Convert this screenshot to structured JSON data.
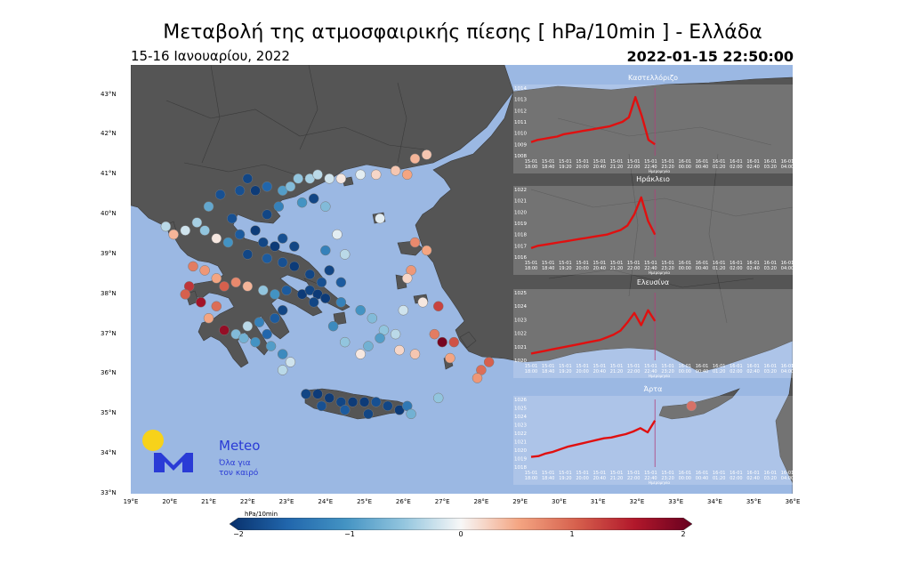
{
  "title": "Μεταβολή της ατμοσφαιρικής πίεσης [ hPa/10min ] - Ελλάδα",
  "subtitle": "15-16 Ιανουαρίου, 2022",
  "timestamp": "2022-01-15 22:50:00",
  "lat_labels": [
    "43°N",
    "42°N",
    "41°N",
    "40°N",
    "39°N",
    "38°N",
    "37°N",
    "36°N",
    "35°N",
    "34°N",
    "33°N"
  ],
  "lon_labels": [
    "19°E",
    "20°E",
    "21°E",
    "22°E",
    "23°E",
    "24°E",
    "25°E",
    "26°E",
    "27°E",
    "28°E",
    "29°E",
    "30°E",
    "31°E",
    "32°E",
    "33°E",
    "34°E",
    "35°E",
    "36°E"
  ],
  "colorbar": {
    "label": "hPa/10min",
    "ticks": [
      "−2",
      "−1",
      "0",
      "1",
      "2"
    ],
    "colors": [
      "#08306b",
      "#2166ac",
      "#4393c3",
      "#92c5de",
      "#f7f7f7",
      "#f4a582",
      "#d6604d",
      "#b2182b",
      "#67001f"
    ]
  },
  "colors": {
    "sea": "#9bb8e3",
    "land": "#555555",
    "border": "#3a3a3a",
    "series": "#e01010",
    "marker": "#b0407a"
  },
  "logo": {
    "name": "Meteo",
    "tagline_1": "Όλα για",
    "tagline_2": "τον καιρό"
  },
  "insets": [
    {
      "name": "Καστελλόριζο",
      "y_ticks": [
        "1014",
        "1013",
        "1012",
        "1011",
        "1010",
        "1009",
        "1008"
      ],
      "y_range": [
        1008,
        1014
      ],
      "x_ticks_date": [
        "15-01",
        "15-01",
        "15-01",
        "15-01",
        "15-01",
        "15-01",
        "15-01",
        "15-01",
        "15-01",
        "16-01",
        "16-01",
        "16-01",
        "16-01",
        "16-01",
        "16-01",
        "16-01"
      ],
      "x_ticks_time": [
        "18:00",
        "18:40",
        "19:20",
        "20:00",
        "20:40",
        "21:20",
        "22:00",
        "22:40",
        "23:20",
        "00:00",
        "00:40",
        "01:20",
        "02:00",
        "02:40",
        "03:20",
        "04:00"
      ],
      "xlabel": "Ημερομηνία",
      "values": [
        1009.2,
        1009.4,
        1009.5,
        1009.6,
        1009.7,
        1009.9,
        1010.0,
        1010.1,
        1010.2,
        1010.3,
        1010.4,
        1010.5,
        1010.6,
        1010.8,
        1011.0,
        1011.4,
        1013.2,
        1011.5,
        1009.4,
        1009.0
      ]
    },
    {
      "name": "Ηράκλειο",
      "y_ticks": [
        "1022",
        "1021",
        "1020",
        "1019",
        "1018",
        "1017",
        "1016"
      ],
      "y_range": [
        1016,
        1022
      ],
      "x_ticks_date": [
        "15-01",
        "15-01",
        "15-01",
        "15-01",
        "15-01",
        "15-01",
        "15-01",
        "15-01",
        "15-01",
        "16-01",
        "16-01",
        "16-01",
        "16-01",
        "16-01",
        "16-01",
        "16-01"
      ],
      "x_ticks_time": [
        "18:00",
        "18:40",
        "19:20",
        "20:00",
        "20:40",
        "21:20",
        "22:00",
        "22:40",
        "23:20",
        "00:00",
        "00:40",
        "01:20",
        "02:00",
        "02:40",
        "03:20",
        "04:00"
      ],
      "xlabel": "Ημερομηνία",
      "values": [
        1016.8,
        1017.0,
        1017.1,
        1017.2,
        1017.3,
        1017.4,
        1017.5,
        1017.6,
        1017.7,
        1017.8,
        1017.9,
        1018.0,
        1018.2,
        1018.4,
        1018.8,
        1019.8,
        1021.3,
        1019.2,
        1018.0
      ]
    },
    {
      "name": "Ελευσίνα",
      "y_ticks": [
        "1025",
        "1024",
        "1023",
        "1022",
        "1021",
        "1020"
      ],
      "y_range": [
        1020,
        1025
      ],
      "x_ticks_date": [
        "15-01",
        "15-01",
        "15-01",
        "15-01",
        "15-01",
        "15-01",
        "15-01",
        "15-01",
        "15-01",
        "16-01",
        "16-01",
        "16-01",
        "16-01",
        "16-01",
        "16-01",
        "16-01"
      ],
      "x_ticks_time": [
        "18:00",
        "18:40",
        "19:20",
        "20:00",
        "20:40",
        "21:20",
        "22:00",
        "22:40",
        "23:20",
        "00:00",
        "00:40",
        "01:20",
        "02:00",
        "02:40",
        "03:20",
        "04:00"
      ],
      "xlabel": "Ημερομηνία",
      "values": [
        1020.5,
        1020.6,
        1020.7,
        1020.8,
        1020.9,
        1021.0,
        1021.1,
        1021.2,
        1021.3,
        1021.4,
        1021.5,
        1021.7,
        1021.9,
        1022.2,
        1022.8,
        1023.5,
        1022.6,
        1023.7,
        1022.9
      ]
    },
    {
      "name": "Άρτα",
      "y_ticks": [
        "1026",
        "1025",
        "1024",
        "1023",
        "1022",
        "1021",
        "1020",
        "1019",
        "1018"
      ],
      "y_range": [
        1018,
        1026
      ],
      "x_ticks_date": [
        "15-01",
        "15-01",
        "15-01",
        "15-01",
        "15-01",
        "15-01",
        "15-01",
        "15-01",
        "15-01",
        "16-01",
        "16-01",
        "16-01",
        "16-01",
        "16-01",
        "16-01",
        "16-01"
      ],
      "x_ticks_time": [
        "18:00",
        "18:40",
        "19:20",
        "20:00",
        "20:40",
        "21:20",
        "22:00",
        "22:40",
        "23:20",
        "00:00",
        "00:40",
        "01:20",
        "02:00",
        "02:40",
        "03:20",
        "04:00"
      ],
      "xlabel": "Ημερομηνία",
      "values": [
        1019.2,
        1019.3,
        1019.6,
        1019.8,
        1020.1,
        1020.4,
        1020.6,
        1020.8,
        1021.0,
        1021.2,
        1021.4,
        1021.5,
        1021.7,
        1021.9,
        1022.2,
        1022.6,
        1022.1,
        1023.5
      ]
    }
  ],
  "stations": [
    [
      22.0,
      40.9,
      -1.8
    ],
    [
      21.8,
      40.6,
      -1.7
    ],
    [
      22.2,
      40.6,
      -1.9
    ],
    [
      22.5,
      40.7,
      -1.5
    ],
    [
      22.9,
      40.6,
      -0.9
    ],
    [
      23.1,
      40.7,
      -0.6
    ],
    [
      23.3,
      40.9,
      -0.5
    ],
    [
      23.6,
      40.9,
      -0.4
    ],
    [
      23.8,
      41.0,
      -0.3
    ],
    [
      24.1,
      40.9,
      -0.2
    ],
    [
      24.4,
      40.9,
      0.1
    ],
    [
      24.9,
      41.0,
      -0.1
    ],
    [
      25.3,
      41.0,
      0.2
    ],
    [
      25.8,
      41.1,
      0.3
    ],
    [
      26.1,
      41.0,
      0.5
    ],
    [
      26.3,
      41.4,
      0.4
    ],
    [
      26.6,
      41.5,
      0.3
    ],
    [
      23.7,
      40.4,
      -1.8
    ],
    [
      24.0,
      40.2,
      -0.6
    ],
    [
      23.4,
      40.3,
      -1.0
    ],
    [
      22.8,
      40.2,
      -1.2
    ],
    [
      21.3,
      40.5,
      -1.7
    ],
    [
      21.0,
      40.2,
      -0.8
    ],
    [
      20.7,
      39.8,
      -0.4
    ],
    [
      20.4,
      39.6,
      -0.2
    ],
    [
      20.1,
      39.5,
      0.4
    ],
    [
      19.9,
      39.7,
      -0.3
    ],
    [
      20.9,
      39.6,
      -0.5
    ],
    [
      21.2,
      39.4,
      0.1
    ],
    [
      21.5,
      39.3,
      -1.0
    ],
    [
      21.8,
      39.5,
      -1.6
    ],
    [
      22.2,
      39.6,
      -1.9
    ],
    [
      22.4,
      39.3,
      -1.8
    ],
    [
      22.7,
      39.2,
      -1.9
    ],
    [
      22.9,
      39.4,
      -1.7
    ],
    [
      23.2,
      39.2,
      -1.8
    ],
    [
      22.0,
      39.0,
      -1.8
    ],
    [
      21.6,
      39.9,
      -1.7
    ],
    [
      22.5,
      40.0,
      -1.8
    ],
    [
      20.6,
      38.7,
      0.8
    ],
    [
      20.9,
      38.6,
      0.6
    ],
    [
      21.2,
      38.4,
      0.5
    ],
    [
      21.4,
      38.2,
      1.0
    ],
    [
      21.7,
      38.3,
      0.7
    ],
    [
      22.0,
      38.2,
      0.4
    ],
    [
      22.4,
      38.1,
      -0.5
    ],
    [
      22.7,
      38.0,
      -1.0
    ],
    [
      23.0,
      38.1,
      -1.6
    ],
    [
      23.4,
      38.0,
      -1.9
    ],
    [
      23.6,
      38.1,
      -1.8
    ],
    [
      23.8,
      38.0,
      -1.9
    ],
    [
      23.9,
      38.3,
      -1.7
    ],
    [
      23.6,
      38.5,
      -1.8
    ],
    [
      23.2,
      38.7,
      -1.9
    ],
    [
      22.9,
      38.8,
      -1.7
    ],
    [
      22.5,
      38.9,
      -1.6
    ],
    [
      24.1,
      38.6,
      -1.8
    ],
    [
      24.4,
      38.3,
      -1.6
    ],
    [
      24.0,
      37.9,
      -1.9
    ],
    [
      23.7,
      37.8,
      -1.8
    ],
    [
      20.5,
      38.2,
      1.3
    ],
    [
      20.4,
      38.0,
      1.0
    ],
    [
      20.8,
      37.8,
      1.6
    ],
    [
      21.2,
      37.7,
      0.9
    ],
    [
      21.0,
      37.4,
      0.5
    ],
    [
      21.4,
      37.1,
      1.7
    ],
    [
      21.7,
      37.0,
      -0.6
    ],
    [
      22.0,
      37.2,
      -0.3
    ],
    [
      22.3,
      37.3,
      -1.2
    ],
    [
      22.5,
      37.0,
      -1.5
    ],
    [
      22.7,
      37.4,
      -1.6
    ],
    [
      22.9,
      37.6,
      -1.8
    ],
    [
      22.2,
      36.8,
      -1.0
    ],
    [
      22.6,
      36.7,
      -0.9
    ],
    [
      22.9,
      36.5,
      -1.1
    ],
    [
      23.1,
      36.3,
      -0.2
    ],
    [
      21.9,
      36.9,
      -0.7
    ],
    [
      24.4,
      37.8,
      -1.2
    ],
    [
      24.9,
      37.6,
      -1.0
    ],
    [
      25.2,
      37.4,
      -0.6
    ],
    [
      25.5,
      37.1,
      -0.5
    ],
    [
      25.8,
      37.0,
      -0.3
    ],
    [
      25.4,
      36.9,
      -0.9
    ],
    [
      25.1,
      36.7,
      -0.7
    ],
    [
      24.9,
      36.5,
      0.1
    ],
    [
      24.5,
      36.8,
      -0.5
    ],
    [
      24.2,
      37.2,
      -1.1
    ],
    [
      25.9,
      36.6,
      0.2
    ],
    [
      26.3,
      36.5,
      0.3
    ],
    [
      26.8,
      37.0,
      0.8
    ],
    [
      27.0,
      36.8,
      1.9
    ],
    [
      27.3,
      36.8,
      1.1
    ],
    [
      27.2,
      36.4,
      0.5
    ],
    [
      28.0,
      36.1,
      0.9
    ],
    [
      27.9,
      35.9,
      0.6
    ],
    [
      28.2,
      36.3,
      1.0
    ],
    [
      25.4,
      39.9,
      -0.1
    ],
    [
      26.3,
      39.3,
      0.7
    ],
    [
      26.6,
      39.1,
      0.5
    ],
    [
      26.2,
      38.6,
      0.6
    ],
    [
      26.1,
      38.4,
      0.2
    ],
    [
      26.5,
      37.8,
      0.1
    ],
    [
      26.0,
      37.6,
      -0.2
    ],
    [
      26.9,
      37.7,
      1.2
    ],
    [
      24.5,
      39.0,
      -0.3
    ],
    [
      24.0,
      39.1,
      -1.2
    ],
    [
      24.3,
      39.5,
      -0.1
    ],
    [
      23.5,
      35.5,
      -1.8
    ],
    [
      23.8,
      35.5,
      -1.9
    ],
    [
      24.1,
      35.4,
      -1.9
    ],
    [
      24.4,
      35.3,
      -1.8
    ],
    [
      24.7,
      35.3,
      -1.9
    ],
    [
      25.0,
      35.3,
      -1.9
    ],
    [
      25.3,
      35.3,
      -1.7
    ],
    [
      25.6,
      35.2,
      -1.8
    ],
    [
      25.9,
      35.1,
      -1.9
    ],
    [
      26.1,
      35.2,
      -1.3
    ],
    [
      25.1,
      35.0,
      -1.8
    ],
    [
      24.5,
      35.1,
      -1.6
    ],
    [
      23.9,
      35.2,
      -1.7
    ],
    [
      26.2,
      35.0,
      -0.7
    ],
    [
      26.9,
      35.4,
      -0.5
    ],
    [
      22.9,
      36.1,
      -0.3
    ],
    [
      33.4,
      35.2,
      1.1
    ]
  ]
}
